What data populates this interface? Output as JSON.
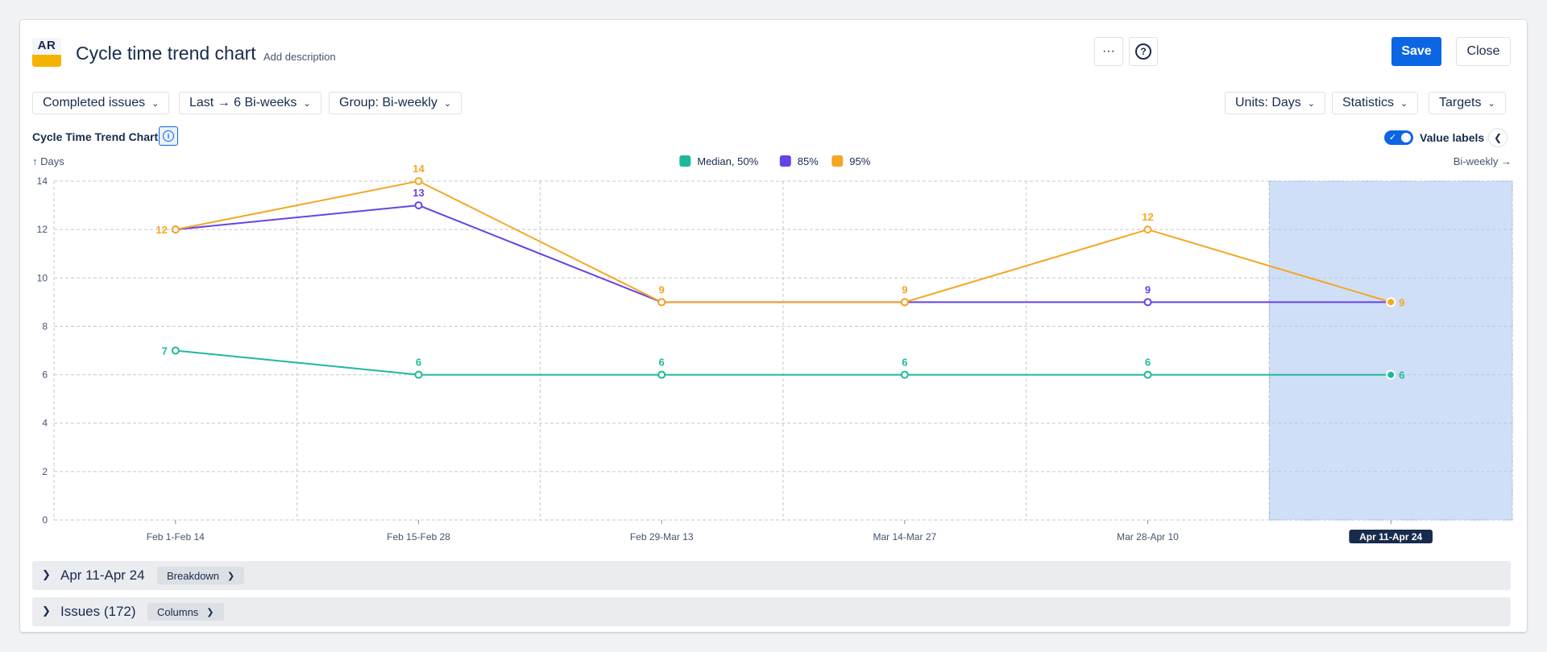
{
  "header": {
    "logo_text": "AR",
    "title": "Cycle time trend chart",
    "add_description": "Add description",
    "more_label": "···",
    "help_label": "?",
    "save_label": "Save",
    "close_label": "Close"
  },
  "filters": {
    "completed": "Completed issues",
    "period": "Last → 6 Bi-weeks",
    "group": "Group: Bi-weekly",
    "units": "Units: Days",
    "statistics": "Statistics",
    "targets": "Targets"
  },
  "chart_header": {
    "title": "Cycle Time Trend Chart",
    "value_labels": "Value labels"
  },
  "chart_data": {
    "type": "line",
    "title": "Cycle Time Trend Chart",
    "xlabel": "Bi-weekly",
    "ylabel": "Days",
    "y_axis_label": "↑ Days",
    "x_axis_label": "Bi-weekly →",
    "ylim": [
      0,
      14
    ],
    "yticks": [
      0,
      2,
      4,
      6,
      8,
      10,
      12,
      14
    ],
    "ytick_labels": [
      "0",
      "2",
      "4",
      "6",
      "8",
      "10",
      "12",
      "14"
    ],
    "grid": true,
    "legend_position": "top-center",
    "categories": [
      "Feb 1-Feb 14",
      "Feb 15-Feb 28",
      "Feb 29-Mar 13",
      "Mar 14-Mar 27",
      "Mar 28-Apr 10",
      "Apr 11-Apr 24"
    ],
    "selected_index": 5,
    "selected_highlight_color": "#cfdff7",
    "series": [
      {
        "name": "Median, 50%",
        "color": "#1fb89b",
        "values": [
          7,
          6,
          6,
          6,
          6,
          6
        ],
        "labels": [
          "7",
          "6",
          "6",
          "6",
          "6",
          "6"
        ]
      },
      {
        "name": "85%",
        "color": "#6743e3",
        "values": [
          12,
          13,
          9,
          9,
          9,
          9
        ],
        "labels": [
          "",
          "13",
          "",
          "",
          "9",
          ""
        ]
      },
      {
        "name": "95%",
        "color": "#f5a623",
        "values": [
          12,
          14,
          9,
          9,
          12,
          9
        ],
        "labels": [
          "12",
          "14",
          "9",
          "9",
          "12",
          "9"
        ]
      }
    ]
  },
  "panels": {
    "breakdown": {
      "title": "Apr 11-Apr 24",
      "chip": "Breakdown"
    },
    "issues": {
      "title": "Issues (172)",
      "chip": "Columns"
    }
  },
  "colors": {
    "primary": "#0c66e4",
    "median": "#1fb89b",
    "p85": "#6743e3",
    "p95": "#f5a623"
  }
}
